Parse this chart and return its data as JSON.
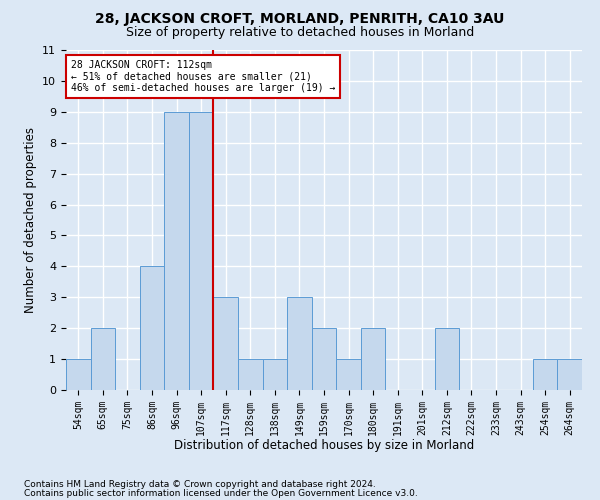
{
  "title": "28, JACKSON CROFT, MORLAND, PENRITH, CA10 3AU",
  "subtitle": "Size of property relative to detached houses in Morland",
  "xlabel": "Distribution of detached houses by size in Morland",
  "ylabel": "Number of detached properties",
  "categories": [
    "54sqm",
    "65sqm",
    "75sqm",
    "86sqm",
    "96sqm",
    "107sqm",
    "117sqm",
    "128sqm",
    "138sqm",
    "149sqm",
    "159sqm",
    "170sqm",
    "180sqm",
    "191sqm",
    "201sqm",
    "212sqm",
    "222sqm",
    "233sqm",
    "243sqm",
    "254sqm",
    "264sqm"
  ],
  "values": [
    1,
    2,
    0,
    4,
    9,
    9,
    3,
    1,
    1,
    3,
    2,
    1,
    2,
    0,
    0,
    2,
    0,
    0,
    0,
    1,
    1
  ],
  "bar_color": "#c5d8ed",
  "bar_edge_color": "#5b9bd5",
  "reference_line_x": 5.5,
  "reference_label": "28 JACKSON CROFT: 112sqm",
  "annotation_line1": "← 51% of detached houses are smaller (21)",
  "annotation_line2": "46% of semi-detached houses are larger (19) →",
  "annotation_box_color": "#ffffff",
  "annotation_box_edge": "#cc0000",
  "reference_line_color": "#cc0000",
  "ylim": [
    0,
    11
  ],
  "yticks": [
    0,
    1,
    2,
    3,
    4,
    5,
    6,
    7,
    8,
    9,
    10,
    11
  ],
  "footnote1": "Contains HM Land Registry data © Crown copyright and database right 2024.",
  "footnote2": "Contains public sector information licensed under the Open Government Licence v3.0.",
  "background_color": "#dce8f5",
  "plot_bg_color": "#dce8f5",
  "grid_color": "#ffffff",
  "title_fontsize": 10,
  "subtitle_fontsize": 9,
  "xlabel_fontsize": 8.5,
  "ylabel_fontsize": 8.5,
  "footnote_fontsize": 6.5
}
